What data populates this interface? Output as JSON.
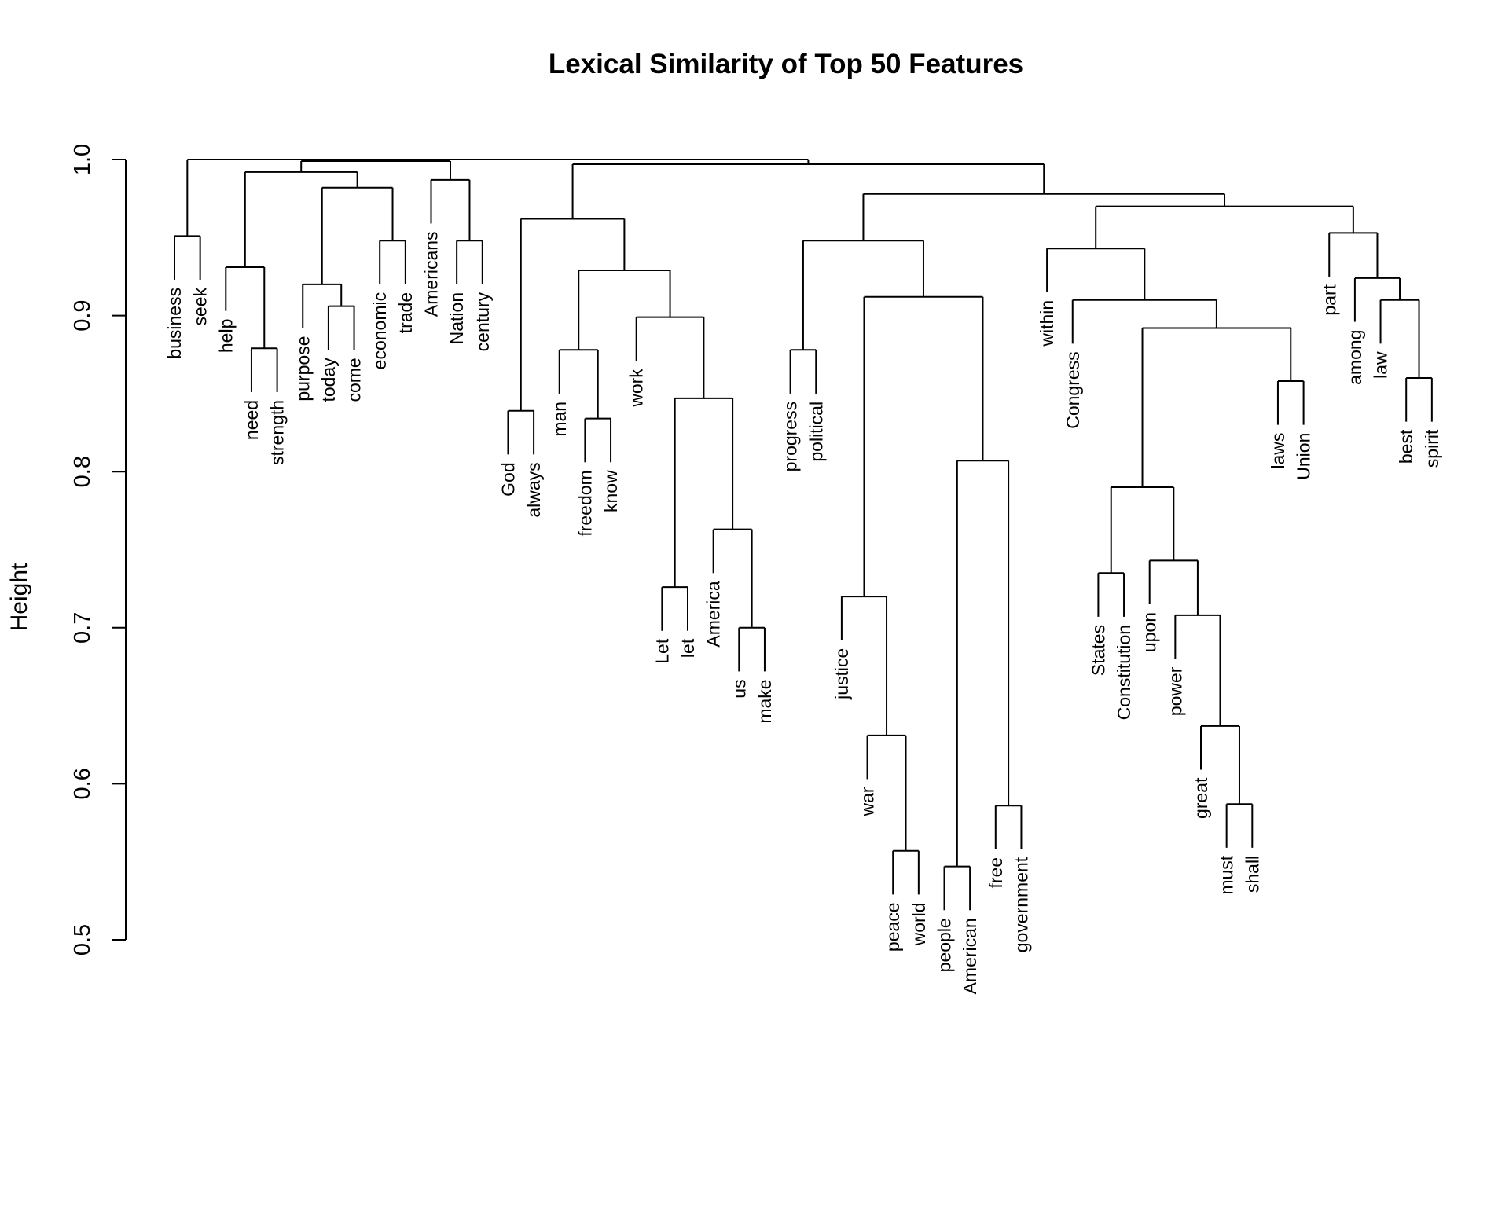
{
  "chart_data": {
    "type": "dendrogram",
    "title": "Lexical Similarity of Top 50 Features",
    "ylabel": "Height",
    "ylim": [
      0.5,
      1.0
    ],
    "yticks": [
      "0.5",
      "0.6",
      "0.7",
      "0.8",
      "0.9",
      "1.0"
    ],
    "leaves": [
      "business",
      "seek",
      "help",
      "need",
      "strength",
      "purpose",
      "today",
      "come",
      "economic",
      "trade",
      "Americans",
      "Nation",
      "century",
      "God",
      "always",
      "man",
      "freedom",
      "know",
      "work",
      "Let",
      "let",
      "America",
      "us",
      "make",
      "progress",
      "political",
      "justice",
      "war",
      "peace",
      "world",
      "people",
      "American",
      "free",
      "government",
      "within",
      "Congress",
      "States",
      "Constitution",
      "upon",
      "power",
      "great",
      "must",
      "shall",
      "laws",
      "Union",
      "part",
      "among",
      "law",
      "best",
      "spirit"
    ],
    "merges": [
      {
        "a": "business",
        "b": "seek",
        "height": 0.951,
        "id": "c1"
      },
      {
        "a": "need",
        "b": "strength",
        "height": 0.879,
        "id": "c2"
      },
      {
        "a": "help",
        "b": "c2",
        "height": 0.931,
        "id": "c3"
      },
      {
        "a": "today",
        "b": "come",
        "height": 0.906,
        "id": "c4"
      },
      {
        "a": "purpose",
        "b": "c4",
        "height": 0.92,
        "id": "c5"
      },
      {
        "a": "economic",
        "b": "trade",
        "height": 0.948,
        "id": "c6"
      },
      {
        "a": "c5",
        "b": "c6",
        "height": 0.982,
        "id": "c7"
      },
      {
        "a": "c3",
        "b": "c7",
        "height": 0.992,
        "id": "c8"
      },
      {
        "a": "Nation",
        "b": "century",
        "height": 0.948,
        "id": "c9"
      },
      {
        "a": "Americans",
        "b": "c9",
        "height": 0.987,
        "id": "c10"
      },
      {
        "a": "c8",
        "b": "c10",
        "height": 0.999,
        "id": "c11"
      },
      {
        "a": "God",
        "b": "always",
        "height": 0.839,
        "id": "c12"
      },
      {
        "a": "freedom",
        "b": "know",
        "height": 0.834,
        "id": "c13"
      },
      {
        "a": "man",
        "b": "c13",
        "height": 0.878,
        "id": "c14"
      },
      {
        "a": "Let",
        "b": "let",
        "height": 0.726,
        "id": "c15"
      },
      {
        "a": "us",
        "b": "make",
        "height": 0.7,
        "id": "c16"
      },
      {
        "a": "America",
        "b": "c16",
        "height": 0.763,
        "id": "c17"
      },
      {
        "a": "c15",
        "b": "c17",
        "height": 0.847,
        "id": "c18"
      },
      {
        "a": "work",
        "b": "c18",
        "height": 0.899,
        "id": "c19"
      },
      {
        "a": "c14",
        "b": "c19",
        "height": 0.929,
        "id": "c20"
      },
      {
        "a": "c12",
        "b": "c20",
        "height": 0.962,
        "id": "c21"
      },
      {
        "a": "progress",
        "b": "political",
        "height": 0.878,
        "id": "c22"
      },
      {
        "a": "peace",
        "b": "world",
        "height": 0.557,
        "id": "c23"
      },
      {
        "a": "war",
        "b": "c23",
        "height": 0.631,
        "id": "c24"
      },
      {
        "a": "justice",
        "b": "c24",
        "height": 0.72,
        "id": "c25"
      },
      {
        "a": "people",
        "b": "American",
        "height": 0.547,
        "id": "c26"
      },
      {
        "a": "free",
        "b": "government",
        "height": 0.586,
        "id": "c27"
      },
      {
        "a": "c26",
        "b": "c27",
        "height": 0.807,
        "id": "c28"
      },
      {
        "a": "c25",
        "b": "c28",
        "height": 0.912,
        "id": "c29"
      },
      {
        "a": "c22",
        "b": "c29",
        "height": 0.948,
        "id": "c30"
      },
      {
        "a": "States",
        "b": "Constitution",
        "height": 0.735,
        "id": "c31"
      },
      {
        "a": "must",
        "b": "shall",
        "height": 0.587,
        "id": "c32"
      },
      {
        "a": "great",
        "b": "c32",
        "height": 0.637,
        "id": "c33"
      },
      {
        "a": "power",
        "b": "c33",
        "height": 0.708,
        "id": "c34"
      },
      {
        "a": "upon",
        "b": "c34",
        "height": 0.743,
        "id": "c35"
      },
      {
        "a": "c31",
        "b": "c35",
        "height": 0.79,
        "id": "c36"
      },
      {
        "a": "laws",
        "b": "Union",
        "height": 0.858,
        "id": "c37"
      },
      {
        "a": "c36",
        "b": "c37",
        "height": 0.892,
        "id": "c38"
      },
      {
        "a": "Congress",
        "b": "c38",
        "height": 0.91,
        "id": "c39"
      },
      {
        "a": "within",
        "b": "c39",
        "height": 0.943,
        "id": "c40"
      },
      {
        "a": "best",
        "b": "spirit",
        "height": 0.86,
        "id": "c41"
      },
      {
        "a": "law",
        "b": "c41",
        "height": 0.91,
        "id": "c42"
      },
      {
        "a": "among",
        "b": "c42",
        "height": 0.924,
        "id": "c43"
      },
      {
        "a": "part",
        "b": "c43",
        "height": 0.953,
        "id": "c44"
      },
      {
        "a": "c40",
        "b": "c44",
        "height": 0.97,
        "id": "c45"
      },
      {
        "a": "c30",
        "b": "c45",
        "height": 0.978,
        "id": "c46"
      },
      {
        "a": "c21",
        "b": "c46",
        "height": 0.997,
        "id": "c47"
      },
      {
        "a": "c11",
        "b": "c47",
        "height": 1.0,
        "id": "c48"
      },
      {
        "a": "c1",
        "b": "c48",
        "height": 1.0,
        "id": "c49"
      }
    ]
  }
}
